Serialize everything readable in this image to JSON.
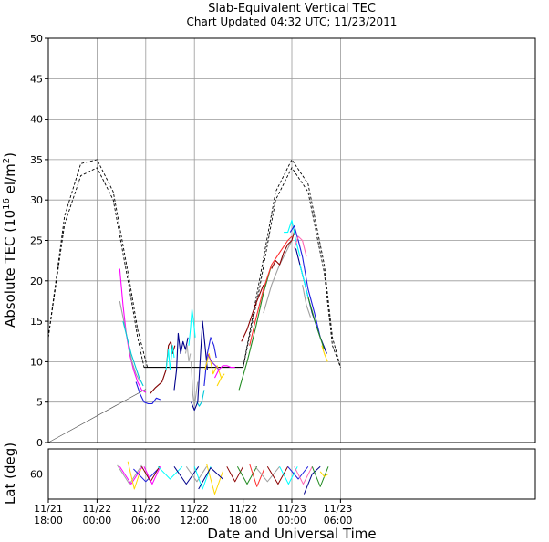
{
  "chart_data": {
    "type": "line",
    "title": "Slab-Equivalent Vertical TEC",
    "subtitle": "Chart Updated 04:32 UTC; 11/23/2011",
    "xlabel": "Date and Universal Time",
    "ylabel": "Absolute TEC (10^16 el/m^2)",
    "ylabel_main": "Absolute TEC (10",
    "ylabel_exp": "16",
    "ylabel_unit": " el/m",
    "ylabel_unit_exp": "2",
    "ylabel_close": ")",
    "lower_ylabel": "Lat (deg)",
    "x_unit": "hours since 11/21 18:00 UT",
    "xlim": [
      0,
      60
    ],
    "ylim": [
      0,
      50
    ],
    "lat_lim": [
      80,
      40
    ],
    "grid": true,
    "x_ticks": [
      {
        "x": 0,
        "date": "11/21",
        "time": "18:00"
      },
      {
        "x": 6,
        "date": "11/22",
        "time": "00:00"
      },
      {
        "x": 12,
        "date": "11/22",
        "time": "06:00"
      },
      {
        "x": 18,
        "date": "11/22",
        "time": "12:00"
      },
      {
        "x": 24,
        "date": "11/22",
        "time": "18:00"
      },
      {
        "x": 30,
        "date": "11/23",
        "time": "00:00"
      },
      {
        "x": 36,
        "date": "11/23",
        "time": "06:00"
      }
    ],
    "y_ticks": [
      0,
      5,
      10,
      15,
      20,
      25,
      30,
      35,
      40,
      45,
      50
    ],
    "lat_ticks": [
      60
    ],
    "reference_curves": [
      {
        "style": "dashed",
        "x": [
          0,
          2,
          4,
          6,
          8,
          10,
          11,
          12.2,
          12.6,
          24,
          26,
          28,
          30,
          32,
          34,
          35,
          36
        ],
        "y": [
          13,
          28,
          34.5,
          35,
          31,
          20,
          14,
          9.3,
          9.3,
          9.3,
          20,
          31,
          35,
          32,
          22,
          13,
          9.3
        ]
      },
      {
        "style": "dashed",
        "x": [
          0,
          2,
          4,
          6,
          8,
          10,
          11,
          11.8,
          12.2,
          24,
          26,
          28,
          30,
          32,
          34,
          35,
          36
        ],
        "y": [
          13,
          27,
          33,
          34,
          30,
          19,
          13,
          9.3,
          9.3,
          9.3,
          19,
          30,
          34,
          31,
          21,
          12,
          9.3
        ]
      }
    ],
    "series": [
      {
        "color": "#ff00ff",
        "x": [
          8.8,
          9.2,
          9.6,
          10.0,
          10.5,
          11.0,
          11.5,
          12.0
        ],
        "y": [
          21.5,
          17,
          13.5,
          11,
          9,
          7.5,
          6.5,
          6.2
        ]
      },
      {
        "color": "#a0a0a0",
        "x": [
          8.8,
          9.3,
          9.8,
          10.3,
          10.8,
          11.3
        ],
        "y": [
          17.5,
          15,
          12.5,
          10,
          8.5,
          7.5
        ]
      },
      {
        "color": "#00c8d8",
        "x": [
          9.2,
          9.7,
          10.2,
          10.7,
          11.2,
          11.7
        ],
        "y": [
          15,
          13,
          11,
          9.5,
          8,
          7
        ]
      },
      {
        "color": "#1e1ee0",
        "x": [
          10.8,
          11.3,
          11.8,
          12.3,
          12.8,
          13.3,
          13.8
        ],
        "y": [
          7.5,
          6,
          5,
          4.8,
          4.8,
          5.5,
          5.3
        ]
      },
      {
        "color": "#800000",
        "x": [
          12.5,
          13.2,
          14.0,
          14.5,
          14.8,
          15.1,
          15.3,
          15.6
        ],
        "y": [
          6,
          6.8,
          7.5,
          9,
          12,
          12.5,
          11,
          12
        ]
      },
      {
        "color": "#00ffff",
        "x": [
          14.5,
          14.8,
          15.0,
          15.3,
          15.5
        ],
        "y": [
          9,
          11.5,
          9,
          12,
          10.5
        ]
      },
      {
        "color": "#00008b",
        "x": [
          15.5,
          15.8,
          16.0,
          16.3,
          16.6,
          16.9,
          17.2
        ],
        "y": [
          6.5,
          9,
          13.5,
          11,
          12.5,
          11.5,
          13
        ]
      },
      {
        "color": "#b0b0b0",
        "x": [
          16.9,
          17.1,
          17.3,
          17.5
        ],
        "y": [
          11,
          12,
          10,
          11
        ]
      },
      {
        "color": "#00ffff",
        "x": [
          17.3,
          17.5,
          17.7,
          17.9,
          18.1
        ],
        "y": [
          12,
          14,
          16.5,
          15,
          13
        ]
      },
      {
        "color": "#a0a0a0",
        "x": [
          17.6,
          17.8,
          18.0,
          18.2,
          18.4
        ],
        "y": [
          10,
          6,
          4.5,
          6,
          7.5
        ]
      },
      {
        "color": "#00c8d8",
        "x": [
          18.3,
          18.6,
          18.9,
          19.2
        ],
        "y": [
          5,
          4.5,
          5,
          6.5
        ]
      },
      {
        "color": "#00008b",
        "x": [
          17.6,
          18.0,
          18.4,
          18.7,
          19.0,
          19.3,
          19.6
        ],
        "y": [
          5,
          4,
          5,
          10,
          15,
          12,
          9
        ]
      },
      {
        "color": "#1e1ee0",
        "x": [
          19.2,
          19.6,
          20.0,
          20.4,
          20.7
        ],
        "y": [
          7,
          11,
          13,
          12,
          10.5
        ]
      },
      {
        "color": "#ffd700",
        "x": [
          19.3,
          19.8,
          20.3,
          20.8,
          21.3
        ],
        "y": [
          9,
          11,
          8.5,
          9.5,
          8
        ]
      },
      {
        "color": "#8a2be2",
        "x": [
          19.6,
          20.1,
          20.6,
          21.0
        ],
        "y": [
          11,
          10,
          9.5,
          9
        ]
      },
      {
        "color": "#ff00ff",
        "x": [
          20.5,
          21.0,
          21.5,
          22.0,
          22.5,
          23.0
        ],
        "y": [
          8,
          9,
          9.5,
          9.5,
          9.3,
          9.3
        ]
      },
      {
        "color": "#ffd700",
        "x": [
          20.8,
          21.3,
          21.7
        ],
        "y": [
          7,
          8,
          8.5
        ]
      },
      {
        "color": "#228b22",
        "x": [
          23.5,
          24.5,
          25.5,
          26.5,
          27.5
        ],
        "y": [
          6.5,
          10,
          14,
          18.5,
          22
        ]
      },
      {
        "color": "#8b0000",
        "x": [
          23.8,
          24.5,
          25.5,
          26.5
        ],
        "y": [
          12.5,
          14,
          17,
          19.5
        ]
      },
      {
        "color": "#ff3030",
        "x": [
          24.8,
          25.5,
          26.5,
          27.5,
          28.5,
          29.5,
          30.0
        ],
        "y": [
          12,
          15,
          19,
          22,
          23.5,
          25,
          25.5
        ]
      },
      {
        "color": "#a0a0a0",
        "x": [
          26.5,
          27.5,
          28.5,
          29.5,
          30.0
        ],
        "y": [
          16,
          19.5,
          22,
          24,
          25
        ]
      },
      {
        "color": "#8b0000",
        "x": [
          27.5,
          28.0,
          28.5,
          29.0,
          29.5,
          30.0,
          30.4
        ],
        "y": [
          21.5,
          22.5,
          22,
          23.5,
          24.5,
          25,
          26.5
        ]
      },
      {
        "color": "#00ffff",
        "x": [
          29.0,
          29.5,
          30.0,
          30.5,
          31.0
        ],
        "y": [
          26,
          26,
          27.5,
          25,
          23
        ]
      },
      {
        "color": "#1e1ee0",
        "x": [
          29.8,
          30.3,
          30.8,
          31.3,
          32.0,
          32.8,
          33.5,
          34.3
        ],
        "y": [
          26,
          26.8,
          25,
          23,
          19,
          16,
          13,
          11
        ]
      },
      {
        "color": "#ff69b4",
        "x": [
          30.3,
          30.8,
          31.3,
          31.8
        ],
        "y": [
          24,
          25.5,
          25,
          23
        ]
      },
      {
        "color": "#00008b",
        "x": [
          30.5,
          31.5,
          32.5,
          33.5,
          34.3
        ],
        "y": [
          24,
          20,
          16,
          13,
          11
        ]
      },
      {
        "color": "#00ffff",
        "x": [
          31.0,
          31.5,
          32.0
        ],
        "y": [
          22,
          20,
          18
        ]
      },
      {
        "color": "#a0a0a0",
        "x": [
          31.3,
          31.8,
          32.3
        ],
        "y": [
          19.5,
          17,
          15.5
        ]
      },
      {
        "color": "#228b22",
        "x": [
          32.0,
          33.0,
          34.0
        ],
        "y": [
          18,
          14.5,
          11.5
        ]
      },
      {
        "color": "#ffd700",
        "x": [
          33.7,
          34.0,
          34.4
        ],
        "y": [
          12,
          11,
          10
        ]
      }
    ],
    "lat_tracks": [
      {
        "color": "#a0a0a0",
        "x": [
          8.5,
          10.0,
          11.5
        ],
        "lat": [
          53,
          68,
          53
        ]
      },
      {
        "color": "#ff00ff",
        "x": [
          8.8,
          10.2,
          11.6
        ],
        "lat": [
          54,
          68,
          54
        ]
      },
      {
        "color": "#ffd700",
        "x": [
          9.8,
          10.6,
          11.4
        ],
        "lat": [
          50,
          72,
          56
        ]
      },
      {
        "color": "#1e1ee0",
        "x": [
          10.5,
          12.0,
          13.5
        ],
        "lat": [
          56,
          66,
          56
        ]
      },
      {
        "color": "#800000",
        "x": [
          11.5,
          12.6,
          13.7
        ],
        "lat": [
          54,
          66,
          54
        ]
      },
      {
        "color": "#ff00ff",
        "x": [
          11.8,
          12.8,
          13.8
        ],
        "lat": [
          54,
          68,
          54
        ]
      },
      {
        "color": "#00ffff",
        "x": [
          13.5,
          15.0,
          16.5
        ],
        "lat": [
          54,
          64,
          54
        ]
      },
      {
        "color": "#00008b",
        "x": [
          15.5,
          17.0,
          18.5
        ],
        "lat": [
          54,
          68,
          54
        ]
      },
      {
        "color": "#a0a0a0",
        "x": [
          17.0,
          18.3,
          19.5
        ],
        "lat": [
          54,
          66,
          54
        ]
      },
      {
        "color": "#00ffff",
        "x": [
          18.0,
          19.0,
          20.0
        ],
        "lat": [
          54,
          72,
          54
        ]
      },
      {
        "color": "#ffd700",
        "x": [
          19.5,
          20.5,
          21.5
        ],
        "lat": [
          52,
          76,
          58
        ]
      },
      {
        "color": "#00008b",
        "x": [
          18.5,
          20.0,
          21.5
        ],
        "lat": [
          72,
          55,
          64
        ]
      },
      {
        "color": "#8b0000",
        "x": [
          22.0,
          23.0,
          24.0
        ],
        "lat": [
          54,
          66,
          54
        ]
      },
      {
        "color": "#228b22",
        "x": [
          23.3,
          24.5,
          25.7
        ],
        "lat": [
          54,
          68,
          54
        ]
      },
      {
        "color": "#ff3030",
        "x": [
          24.8,
          25.7,
          26.6
        ],
        "lat": [
          52,
          70,
          56
        ]
      },
      {
        "color": "#a0a0a0",
        "x": [
          25.5,
          27.0,
          28.5
        ],
        "lat": [
          54,
          66,
          54
        ]
      },
      {
        "color": "#8b0000",
        "x": [
          27.0,
          28.3,
          29.5
        ],
        "lat": [
          54,
          68,
          54
        ]
      },
      {
        "color": "#00ffff",
        "x": [
          28.5,
          29.6,
          30.7
        ],
        "lat": [
          54,
          68,
          54
        ]
      },
      {
        "color": "#1e1ee0",
        "x": [
          29.5,
          30.8,
          32.0
        ],
        "lat": [
          54,
          64,
          54
        ]
      },
      {
        "color": "#ff69b4",
        "x": [
          30.3,
          31.4,
          32.5
        ],
        "lat": [
          54,
          68,
          54
        ]
      },
      {
        "color": "#00008b",
        "x": [
          31.5,
          32.5,
          33.5
        ],
        "lat": [
          76,
          60,
          54
        ]
      },
      {
        "color": "#228b22",
        "x": [
          32.5,
          33.5,
          34.5
        ],
        "lat": [
          54,
          70,
          54
        ]
      },
      {
        "color": "#ffd700",
        "x": [
          33.5,
          34.0,
          34.5
        ],
        "lat": [
          58,
          62,
          60
        ]
      }
    ]
  }
}
